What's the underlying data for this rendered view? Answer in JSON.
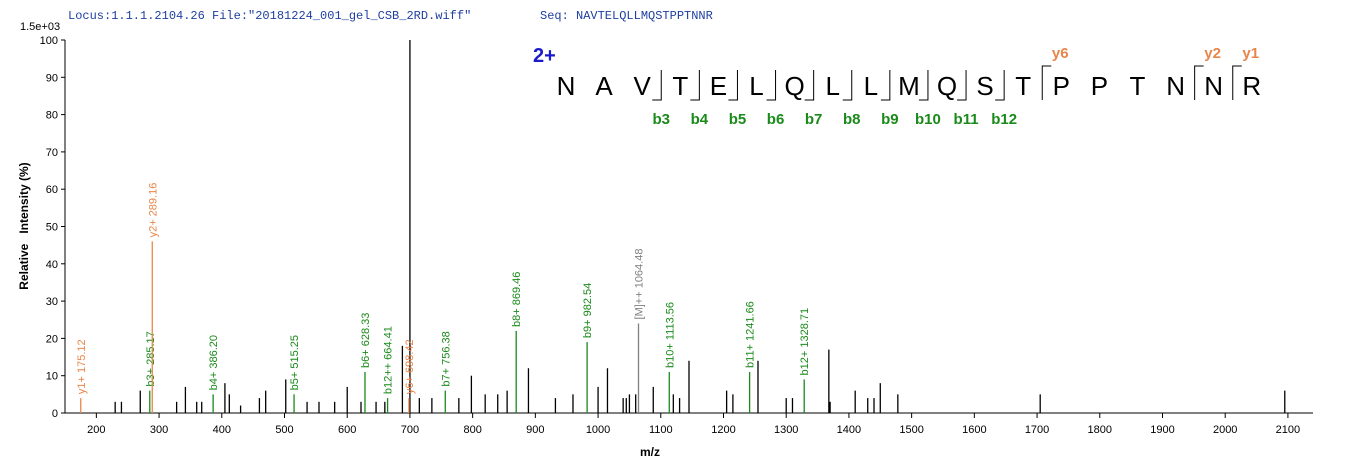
{
  "header": {
    "locus": "Locus:1.1.1.2104.26 File:\"20181224_001_gel_CSB_2RD.wiff\"",
    "seq": "Seq: NAVTELQLLMQSTPPTNNR"
  },
  "sequence": {
    "charge": "2+",
    "residues": [
      "N",
      "A",
      "V",
      "T",
      "E",
      "L",
      "Q",
      "L",
      "L",
      "M",
      "Q",
      "S",
      "T",
      "P",
      "P",
      "T",
      "N",
      "N",
      "R"
    ],
    "b_ions": [
      "b3",
      "b4",
      "b5",
      "b6",
      "b7",
      "b8",
      "b9",
      "b10",
      "b11",
      "b12"
    ],
    "y_ions": [
      "y6",
      "y2",
      "y1"
    ]
  },
  "chart_data": {
    "type": "bar",
    "scale_label": "1.5e+03",
    "x_label": "m/z",
    "y_label": "Relative   Intensity (%)",
    "xlim": [
      150,
      2140
    ],
    "ylim": [
      0,
      100
    ],
    "xticks": [
      200,
      300,
      400,
      500,
      600,
      700,
      800,
      900,
      1000,
      1100,
      1200,
      1300,
      1400,
      1500,
      1600,
      1700,
      1800,
      1900,
      2000,
      2100
    ],
    "yticks": [
      0,
      10,
      20,
      30,
      40,
      50,
      60,
      70,
      80,
      90,
      100
    ],
    "series": [
      {
        "color": "#000000",
        "x": [
          230,
          240,
          270,
          328,
          342,
          360,
          368,
          405,
          412,
          430,
          460,
          470,
          502,
          536,
          555,
          580,
          600,
          622,
          646,
          660,
          688,
          700,
          715,
          735,
          778,
          798,
          820,
          840,
          855,
          889,
          932,
          960,
          1000,
          1015,
          1040,
          1045,
          1050,
          1060,
          1088,
          1120,
          1130,
          1145,
          1205,
          1215,
          1255,
          1300,
          1310,
          1368,
          1370,
          1410,
          1430,
          1440,
          1450,
          1478,
          1705,
          2095
        ],
        "values": [
          3,
          3,
          6,
          3,
          7,
          3,
          3,
          8,
          5,
          2,
          4,
          6,
          9,
          3,
          3,
          3,
          7,
          3,
          3,
          3,
          18,
          100,
          4,
          4,
          4,
          10,
          5,
          5,
          6,
          12,
          4,
          5,
          7,
          12,
          4,
          4,
          5,
          5,
          7,
          5,
          4,
          14,
          6,
          5,
          14,
          4,
          4,
          17,
          3,
          6,
          4,
          4,
          8,
          5,
          5,
          6
        ]
      },
      {
        "color": "#1a8a1a",
        "x": [
          285.17,
          386.2,
          515.25,
          628.33,
          664.41,
          756.38,
          869.46,
          982.54,
          1113.56,
          1241.66,
          1328.71
        ],
        "values": [
          6,
          5,
          5,
          11,
          4,
          6,
          22,
          19,
          11,
          11,
          9
        ],
        "labels": [
          "b3+ 285.17",
          "b4+ 386.20",
          "b5+ 515.25",
          "b6+ 628.33",
          "b12++ 664.41",
          "b7+ 756.38",
          "b8+ 869.46",
          "b9+ 982.54",
          "b10+ 1113.56",
          "b11+ 1241.66",
          "b12+ 1328.71"
        ]
      },
      {
        "color": "#e8864a",
        "x": [
          175.12,
          289.16,
          698.42
        ],
        "values": [
          4,
          46,
          4
        ],
        "labels": [
          "y1+ 175.12",
          "y2+ 289.16",
          "y6+ 698.42"
        ]
      },
      {
        "color": "#808080",
        "x": [
          1064.48
        ],
        "values": [
          24
        ],
        "labels": [
          "[M]++ 1064.48"
        ]
      }
    ]
  }
}
